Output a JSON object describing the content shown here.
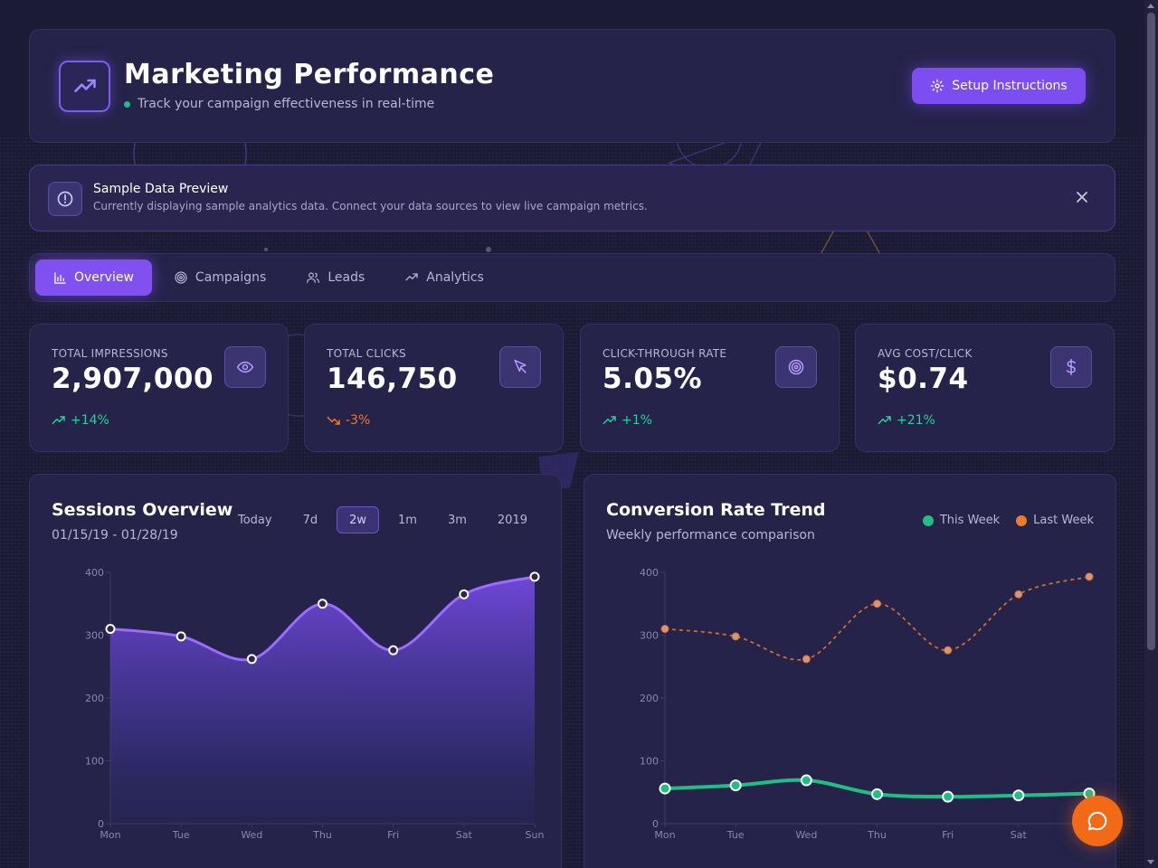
{
  "header": {
    "title": "Marketing Performance",
    "subtitle": "Track your campaign effectiveness in real-time",
    "setup_label": "Setup Instructions"
  },
  "notice": {
    "title": "Sample Data Preview",
    "text": "Currently displaying sample analytics data. Connect your data sources to view live campaign metrics."
  },
  "tabs": [
    {
      "label": "Overview",
      "icon": "bar-chart-icon",
      "active": true
    },
    {
      "label": "Campaigns",
      "icon": "target-icon",
      "active": false
    },
    {
      "label": "Leads",
      "icon": "users-icon",
      "active": false
    },
    {
      "label": "Analytics",
      "icon": "trending-up-icon",
      "active": false
    }
  ],
  "stats": [
    {
      "label": "TOTAL IMPRESSIONS",
      "value": "2,907,000",
      "change": "+14%",
      "trend": "up",
      "icon": "eye-icon"
    },
    {
      "label": "TOTAL CLICKS",
      "value": "146,750",
      "change": "-3%",
      "trend": "down",
      "icon": "cursor-icon"
    },
    {
      "label": "CLICK-THROUGH RATE",
      "value": "5.05%",
      "change": "+1%",
      "trend": "up",
      "icon": "target-icon"
    },
    {
      "label": "AVG COST/CLICK",
      "value": "$0.74",
      "change": "+21%",
      "trend": "up",
      "icon": "dollar-icon"
    }
  ],
  "sessions": {
    "title": "Sessions Overview",
    "date_range": "01/15/19 - 01/28/19",
    "ranges": [
      "Today",
      "7d",
      "2w",
      "1m",
      "3m",
      "2019"
    ],
    "active_range": "2w"
  },
  "conversion": {
    "title": "Conversion Rate Trend",
    "subtitle": "Weekly performance comparison",
    "legend": [
      "This Week",
      "Last Week"
    ]
  },
  "colors": {
    "accent": "#7c4df0",
    "this_week": "#1fbf84",
    "last_week": "#f07a2a",
    "positive": "#2ed096",
    "negative": "#f07a2a"
  },
  "chart_data": [
    {
      "type": "area",
      "categories": [
        "Mon",
        "Tue",
        "Wed",
        "Thu",
        "Fri",
        "Sat",
        "Sun"
      ],
      "values": [
        310,
        298,
        262,
        350,
        276,
        365,
        393
      ],
      "ylim": [
        0,
        400
      ],
      "yticks": [
        0,
        100,
        200,
        300,
        400
      ],
      "grid": false
    },
    {
      "type": "line",
      "categories": [
        "Mon",
        "Tue",
        "Wed",
        "Thu",
        "Fri",
        "Sat",
        "Sun"
      ],
      "series": [
        {
          "name": "This Week",
          "values": [
            56,
            61,
            69,
            47,
            43,
            45,
            48
          ]
        },
        {
          "name": "Last Week",
          "values": [
            310,
            298,
            262,
            350,
            276,
            365,
            393
          ]
        }
      ],
      "ylim": [
        0,
        400
      ],
      "yticks": [
        0,
        100,
        200,
        300,
        400
      ],
      "grid": false
    }
  ]
}
